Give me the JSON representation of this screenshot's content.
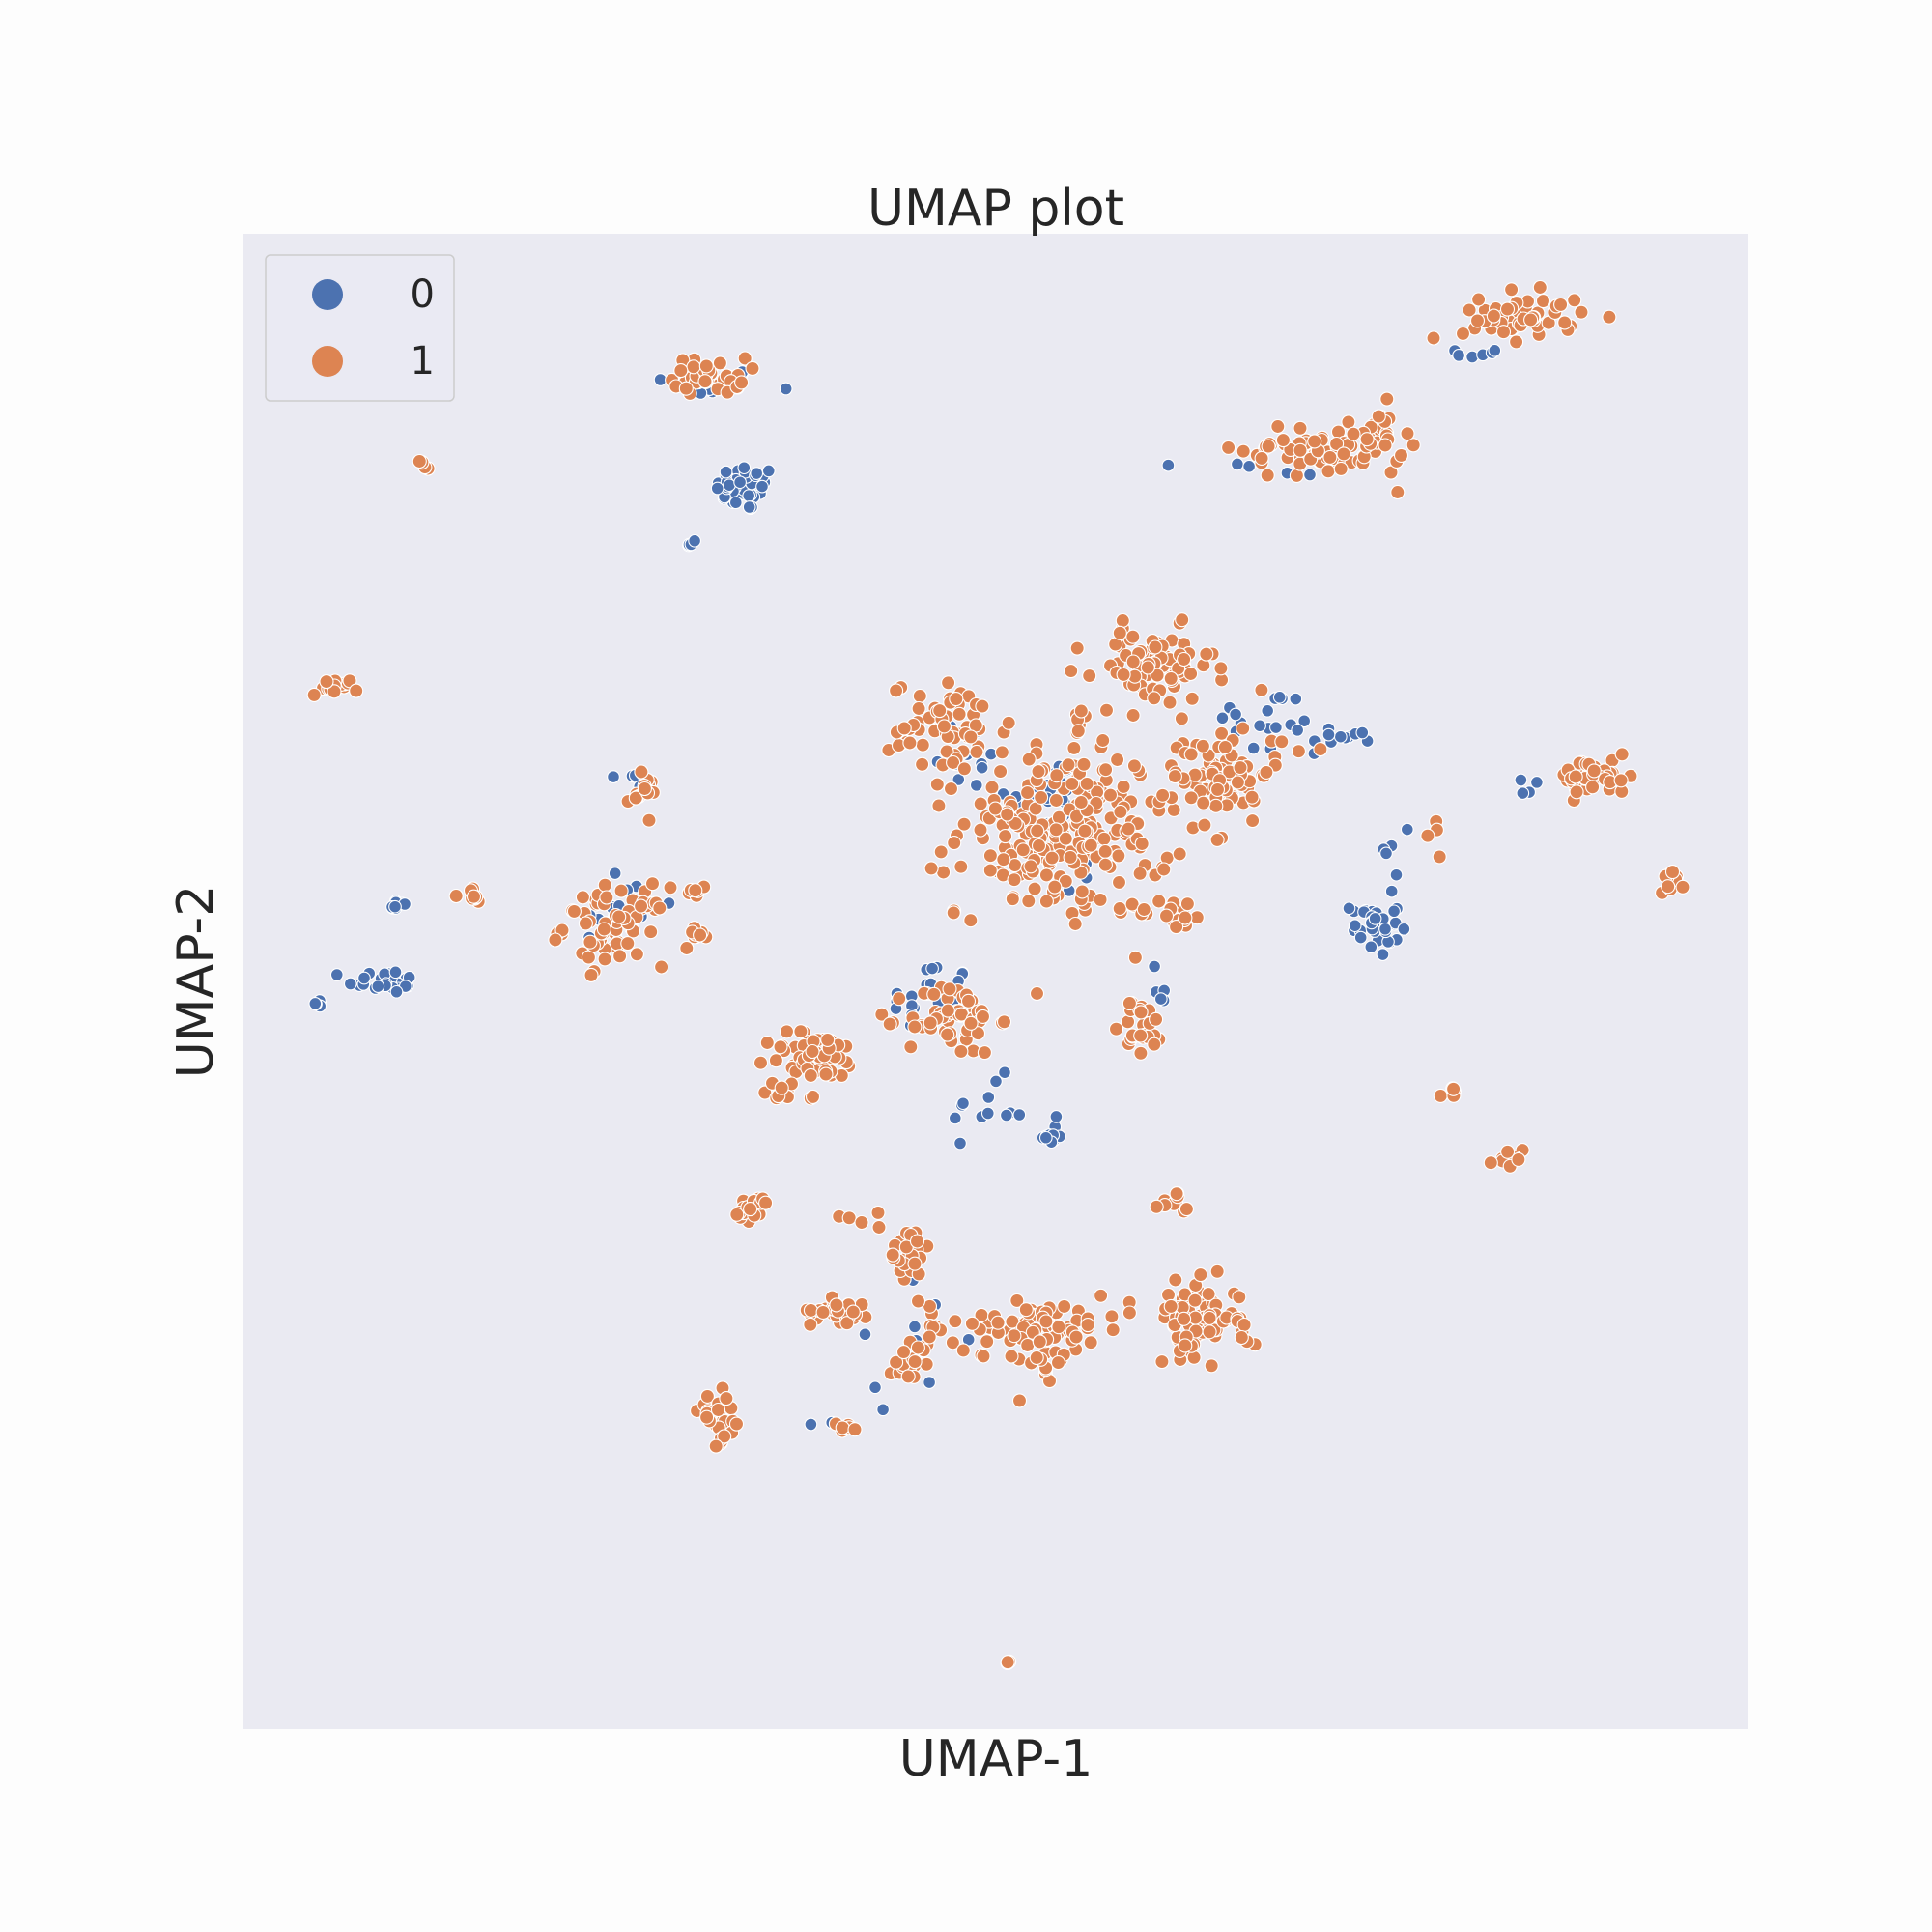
{
  "chart_data": {
    "type": "scatter",
    "title": "UMAP plot",
    "xlabel": "UMAP-1",
    "ylabel": "UMAP-2",
    "xlim": [
      0,
      1
    ],
    "ylim": [
      0,
      1
    ],
    "axis_ticks": false,
    "grid": false,
    "background_color": "#eaeaf2",
    "legend": {
      "position": "top-left"
    },
    "series": [
      {
        "name": "0",
        "color": "#4c72b0",
        "clusters": [
          {
            "cx": 0.305,
            "cy": 0.9,
            "sx": 0.02,
            "sy": 0.005,
            "n": 10
          },
          {
            "cx": 0.334,
            "cy": 0.83,
            "sx": 0.01,
            "sy": 0.008,
            "n": 45
          },
          {
            "cx": 0.298,
            "cy": 0.793,
            "sx": 0.003,
            "sy": 0.002,
            "n": 4
          },
          {
            "cx": 0.05,
            "cy": 0.487,
            "sx": 0.003,
            "sy": 0.002,
            "n": 5
          },
          {
            "cx": 0.093,
            "cy": 0.5,
            "sx": 0.012,
            "sy": 0.004,
            "n": 25
          },
          {
            "cx": 0.1,
            "cy": 0.551,
            "sx": 0.004,
            "sy": 0.003,
            "n": 8
          },
          {
            "cx": 0.262,
            "cy": 0.635,
            "sx": 0.004,
            "sy": 0.004,
            "n": 6
          },
          {
            "cx": 0.248,
            "cy": 0.55,
            "sx": 0.015,
            "sy": 0.015,
            "n": 15
          },
          {
            "cx": 0.535,
            "cy": 0.62,
            "sx": 0.014,
            "sy": 0.018,
            "n": 30
          },
          {
            "cx": 0.48,
            "cy": 0.655,
            "sx": 0.012,
            "sy": 0.018,
            "n": 12
          },
          {
            "cx": 0.68,
            "cy": 0.672,
            "sx": 0.018,
            "sy": 0.012,
            "n": 18
          },
          {
            "cx": 0.73,
            "cy": 0.665,
            "sx": 0.012,
            "sy": 0.003,
            "n": 12
          },
          {
            "cx": 0.455,
            "cy": 0.488,
            "sx": 0.014,
            "sy": 0.014,
            "n": 22
          },
          {
            "cx": 0.495,
            "cy": 0.415,
            "sx": 0.012,
            "sy": 0.01,
            "n": 12
          },
          {
            "cx": 0.537,
            "cy": 0.398,
            "sx": 0.005,
            "sy": 0.005,
            "n": 10
          },
          {
            "cx": 0.605,
            "cy": 0.49,
            "sx": 0.004,
            "sy": 0.012,
            "n": 8
          },
          {
            "cx": 0.752,
            "cy": 0.537,
            "sx": 0.008,
            "sy": 0.01,
            "n": 35
          },
          {
            "cx": 0.77,
            "cy": 0.59,
            "sx": 0.006,
            "sy": 0.012,
            "n": 5
          },
          {
            "cx": 0.822,
            "cy": 0.92,
            "sx": 0.008,
            "sy": 0.004,
            "n": 6
          },
          {
            "cx": 0.69,
            "cy": 0.845,
            "sx": 0.03,
            "sy": 0.006,
            "n": 6
          },
          {
            "cx": 0.56,
            "cy": 0.565,
            "sx": 0.01,
            "sy": 0.008,
            "n": 4
          },
          {
            "cx": 0.44,
            "cy": 0.26,
            "sx": 0.02,
            "sy": 0.02,
            "n": 10
          },
          {
            "cx": 0.85,
            "cy": 0.63,
            "sx": 0.008,
            "sy": 0.005,
            "n": 4
          },
          {
            "cx": 0.375,
            "cy": 0.21,
            "sx": 0.02,
            "sy": 0.004,
            "n": 2
          }
        ]
      },
      {
        "name": "1",
        "color": "#dd8452",
        "clusters": [
          {
            "cx": 0.31,
            "cy": 0.905,
            "sx": 0.012,
            "sy": 0.006,
            "n": 40
          },
          {
            "cx": 0.12,
            "cy": 0.845,
            "sx": 0.002,
            "sy": 0.002,
            "n": 4
          },
          {
            "cx": 0.06,
            "cy": 0.697,
            "sx": 0.008,
            "sy": 0.003,
            "n": 15
          },
          {
            "cx": 0.265,
            "cy": 0.625,
            "sx": 0.005,
            "sy": 0.006,
            "n": 15
          },
          {
            "cx": 0.15,
            "cy": 0.558,
            "sx": 0.005,
            "sy": 0.003,
            "n": 8
          },
          {
            "cx": 0.247,
            "cy": 0.537,
            "sx": 0.017,
            "sy": 0.013,
            "n": 70
          },
          {
            "cx": 0.303,
            "cy": 0.532,
            "sx": 0.005,
            "sy": 0.002,
            "n": 8
          },
          {
            "cx": 0.3,
            "cy": 0.56,
            "sx": 0.008,
            "sy": 0.003,
            "n": 6
          },
          {
            "cx": 0.47,
            "cy": 0.67,
            "sx": 0.02,
            "sy": 0.015,
            "n": 60
          },
          {
            "cx": 0.545,
            "cy": 0.6,
            "sx": 0.035,
            "sy": 0.028,
            "n": 230
          },
          {
            "cx": 0.605,
            "cy": 0.71,
            "sx": 0.02,
            "sy": 0.013,
            "n": 80
          },
          {
            "cx": 0.65,
            "cy": 0.64,
            "sx": 0.016,
            "sy": 0.016,
            "n": 70
          },
          {
            "cx": 0.618,
            "cy": 0.545,
            "sx": 0.012,
            "sy": 0.005,
            "n": 20
          },
          {
            "cx": 0.555,
            "cy": 0.69,
            "sx": 0.004,
            "sy": 0.02,
            "n": 8
          },
          {
            "cx": 0.471,
            "cy": 0.475,
            "sx": 0.015,
            "sy": 0.012,
            "n": 60
          },
          {
            "cx": 0.38,
            "cy": 0.45,
            "sx": 0.016,
            "sy": 0.008,
            "n": 60
          },
          {
            "cx": 0.597,
            "cy": 0.47,
            "sx": 0.007,
            "sy": 0.01,
            "n": 25
          },
          {
            "cx": 0.62,
            "cy": 0.35,
            "sx": 0.005,
            "sy": 0.005,
            "n": 10
          },
          {
            "cx": 0.34,
            "cy": 0.348,
            "sx": 0.007,
            "sy": 0.004,
            "n": 20
          },
          {
            "cx": 0.41,
            "cy": 0.34,
            "sx": 0.01,
            "sy": 0.004,
            "n": 5
          },
          {
            "cx": 0.443,
            "cy": 0.32,
            "sx": 0.007,
            "sy": 0.01,
            "n": 25
          },
          {
            "cx": 0.397,
            "cy": 0.28,
            "sx": 0.01,
            "sy": 0.004,
            "n": 30
          },
          {
            "cx": 0.52,
            "cy": 0.27,
            "sx": 0.035,
            "sy": 0.01,
            "n": 80
          },
          {
            "cx": 0.535,
            "cy": 0.245,
            "sx": 0.006,
            "sy": 0.012,
            "n": 15
          },
          {
            "cx": 0.633,
            "cy": 0.275,
            "sx": 0.013,
            "sy": 0.012,
            "n": 70
          },
          {
            "cx": 0.663,
            "cy": 0.27,
            "sx": 0.004,
            "sy": 0.01,
            "n": 8
          },
          {
            "cx": 0.442,
            "cy": 0.245,
            "sx": 0.006,
            "sy": 0.006,
            "n": 18
          },
          {
            "cx": 0.317,
            "cy": 0.208,
            "sx": 0.007,
            "sy": 0.008,
            "n": 30
          },
          {
            "cx": 0.4,
            "cy": 0.201,
            "sx": 0.005,
            "sy": 0.002,
            "n": 8
          },
          {
            "cx": 0.715,
            "cy": 0.856,
            "sx": 0.025,
            "sy": 0.01,
            "n": 70
          },
          {
            "cx": 0.755,
            "cy": 0.863,
            "sx": 0.008,
            "sy": 0.01,
            "n": 20
          },
          {
            "cx": 0.85,
            "cy": 0.945,
            "sx": 0.02,
            "sy": 0.008,
            "n": 50
          },
          {
            "cx": 0.898,
            "cy": 0.637,
            "sx": 0.012,
            "sy": 0.006,
            "n": 50
          },
          {
            "cx": 0.949,
            "cy": 0.568,
            "sx": 0.004,
            "sy": 0.004,
            "n": 10
          },
          {
            "cx": 0.8,
            "cy": 0.425,
            "sx": 0.004,
            "sy": 0.002,
            "n": 5
          },
          {
            "cx": 0.84,
            "cy": 0.38,
            "sx": 0.006,
            "sy": 0.004,
            "n": 8
          },
          {
            "cx": 0.365,
            "cy": 0.425,
            "sx": 0.01,
            "sy": 0.005,
            "n": 10
          },
          {
            "cx": 0.508,
            "cy": 0.045,
            "sx": 0.001,
            "sy": 0.001,
            "n": 3
          },
          {
            "cx": 0.79,
            "cy": 0.608,
            "sx": 0.008,
            "sy": 0.01,
            "n": 4
          },
          {
            "cx": 0.705,
            "cy": 0.658,
            "sx": 0.015,
            "sy": 0.004,
            "n": 4
          }
        ]
      }
    ]
  }
}
